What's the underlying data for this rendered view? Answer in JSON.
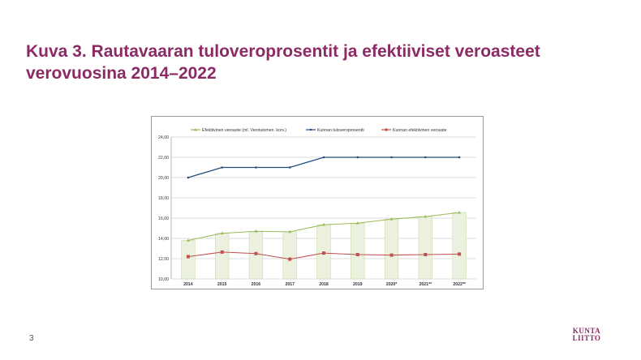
{
  "slide": {
    "title": "Kuva 3. Rautavaaran tuloveroprosentit ja efektiiviset veroasteet verovuosina 2014–2022",
    "page_number": "3",
    "logo_line1": "KUNTA",
    "logo_line2": "LIITTO"
  },
  "colors": {
    "title": "#8b2a64",
    "effective_total": "#9bbb59",
    "municipal_rate": "#1f4e79",
    "municipal_effective": "#c0504d",
    "bar_fill": "#ebf1de"
  },
  "chart_data": {
    "type": "line",
    "title": "",
    "xlabel": "",
    "ylabel": "",
    "categories": [
      "2014",
      "2015",
      "2016",
      "2017",
      "2018",
      "2019",
      "2020*",
      "2021**",
      "2022**"
    ],
    "ylim": [
      10,
      24
    ],
    "yticks": [
      "10,00",
      "12,00",
      "14,00",
      "16,00",
      "18,00",
      "20,00",
      "22,00",
      "24,00"
    ],
    "grid": true,
    "legend_position": "top",
    "series": [
      {
        "name": "Efektiivinen veroaste (ml. Verotulomen. korv.)",
        "style": "line+bar",
        "values": [
          13.8,
          14.5,
          14.7,
          14.65,
          15.35,
          15.5,
          15.9,
          16.15,
          16.55
        ]
      },
      {
        "name": "Kunnan tuloveroprosentti",
        "style": "line",
        "values": [
          20.0,
          21.0,
          21.0,
          21.0,
          22.0,
          22.0,
          22.0,
          22.0,
          22.0
        ]
      },
      {
        "name": "Kunnan efektiivinen veroaste",
        "style": "line",
        "values": [
          12.2,
          12.65,
          12.5,
          11.95,
          12.55,
          12.4,
          12.35,
          12.4,
          12.45
        ]
      }
    ]
  }
}
